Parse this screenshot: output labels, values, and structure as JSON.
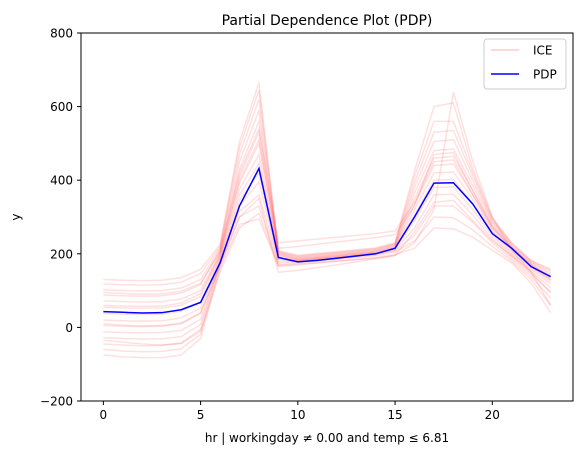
{
  "chart_data": {
    "type": "line",
    "title": "Partial Dependence Plot (PDP)",
    "xlabel": "hr | workingday ≠ 0.00 and temp ≤ 6.81",
    "ylabel": "y",
    "xlim": [
      -1.15,
      24.15
    ],
    "ylim": [
      -200,
      800
    ],
    "xticks": [
      0,
      5,
      10,
      15,
      20
    ],
    "yticks": [
      -200,
      0,
      200,
      400,
      600,
      800
    ],
    "grid": false,
    "legend_position": "top-right",
    "x": [
      0,
      1,
      2,
      3,
      4,
      5,
      6,
      7,
      8,
      9,
      10,
      11,
      12,
      13,
      14,
      15,
      16,
      17,
      18,
      19,
      20,
      21,
      22,
      23
    ],
    "series": [
      {
        "name": "PDP",
        "color": "#0000ff",
        "values": [
          43,
          41,
          39,
          40,
          48,
          68,
          175,
          330,
          432,
          190,
          178,
          182,
          188,
          194,
          200,
          215,
          300,
          392,
          393,
          335,
          255,
          215,
          165,
          138
        ]
      }
    ],
    "ice": {
      "name": "ICE",
      "color": "#ff0000",
      "opacity": 0.12,
      "lines": [
        [
          -75,
          -80,
          -82,
          -82,
          -75,
          -30,
          160,
          280,
          295,
          165,
          170,
          175,
          180,
          185,
          190,
          198,
          215,
          270,
          268,
          245,
          210,
          175,
          120,
          40
        ],
        [
          -60,
          -64,
          -66,
          -65,
          -58,
          -18,
          170,
          300,
          330,
          170,
          175,
          180,
          185,
          190,
          195,
          205,
          235,
          300,
          298,
          265,
          220,
          180,
          130,
          60
        ],
        [
          -45,
          -48,
          -50,
          -49,
          -42,
          -5,
          175,
          315,
          360,
          175,
          178,
          183,
          188,
          193,
          198,
          208,
          250,
          330,
          330,
          285,
          230,
          185,
          138,
          80
        ],
        [
          -28,
          -30,
          -32,
          -31,
          -25,
          8,
          178,
          330,
          395,
          180,
          180,
          185,
          190,
          195,
          200,
          210,
          270,
          360,
          362,
          305,
          240,
          190,
          145,
          95
        ],
        [
          -12,
          -14,
          -15,
          -14,
          -8,
          22,
          182,
          345,
          420,
          185,
          181,
          186,
          191,
          196,
          201,
          212,
          290,
          380,
          382,
          320,
          248,
          195,
          152,
          108
        ],
        [
          5,
          3,
          2,
          3,
          10,
          38,
          186,
          360,
          445,
          190,
          182,
          187,
          192,
          197,
          202,
          214,
          305,
          400,
          402,
          335,
          255,
          200,
          158,
          118
        ],
        [
          20,
          18,
          17,
          18,
          26,
          52,
          190,
          375,
          470,
          193,
          183,
          188,
          193,
          198,
          203,
          216,
          320,
          420,
          422,
          348,
          262,
          205,
          162,
          125
        ],
        [
          38,
          36,
          35,
          36,
          44,
          68,
          195,
          392,
          500,
          196,
          185,
          190,
          195,
          200,
          205,
          218,
          335,
          440,
          444,
          360,
          268,
          210,
          166,
          130
        ],
        [
          55,
          53,
          52,
          53,
          60,
          84,
          200,
          410,
          530,
          198,
          186,
          191,
          196,
          201,
          206,
          220,
          350,
          460,
          465,
          372,
          274,
          214,
          170,
          135
        ],
        [
          72,
          70,
          69,
          70,
          77,
          100,
          205,
          430,
          560,
          200,
          188,
          193,
          198,
          203,
          208,
          222,
          365,
          480,
          485,
          385,
          280,
          218,
          173,
          140
        ],
        [
          88,
          86,
          85,
          86,
          93,
          116,
          210,
          450,
          590,
          202,
          190,
          195,
          200,
          205,
          210,
          224,
          380,
          505,
          510,
          398,
          286,
          222,
          176,
          145
        ],
        [
          102,
          100,
          99,
          100,
          107,
          130,
          215,
          470,
          620,
          204,
          192,
          197,
          202,
          207,
          212,
          226,
          395,
          530,
          535,
          410,
          290,
          225,
          178,
          150
        ],
        [
          118,
          116,
          115,
          116,
          123,
          146,
          220,
          490,
          645,
          206,
          194,
          199,
          204,
          209,
          214,
          228,
          410,
          560,
          560,
          420,
          294,
          228,
          180,
          155
        ],
        [
          130,
          128,
          127,
          128,
          135,
          158,
          225,
          505,
          665,
          208,
          196,
          201,
          206,
          211,
          216,
          230,
          425,
          600,
          610,
          430,
          298,
          230,
          182,
          158
        ],
        [
          -35,
          -40,
          -45,
          -48,
          -44,
          -10,
          150,
          270,
          310,
          168,
          172,
          176,
          180,
          184,
          188,
          195,
          230,
          320,
          640,
          450,
          300,
          210,
          150,
          60
        ],
        [
          95,
          92,
          90,
          91,
          98,
          120,
          208,
          420,
          540,
          230,
          235,
          240,
          245,
          250,
          255,
          262,
          340,
          450,
          455,
          360,
          270,
          215,
          165,
          130
        ],
        [
          10,
          6,
          4,
          5,
          12,
          40,
          165,
          300,
          350,
          150,
          155,
          162,
          170,
          178,
          186,
          196,
          260,
          340,
          345,
          290,
          235,
          195,
          150,
          95
        ],
        [
          60,
          58,
          57,
          58,
          66,
          92,
          198,
          400,
          510,
          215,
          220,
          226,
          232,
          238,
          244,
          252,
          330,
          470,
          475,
          370,
          275,
          218,
          170,
          138
        ]
      ]
    }
  }
}
